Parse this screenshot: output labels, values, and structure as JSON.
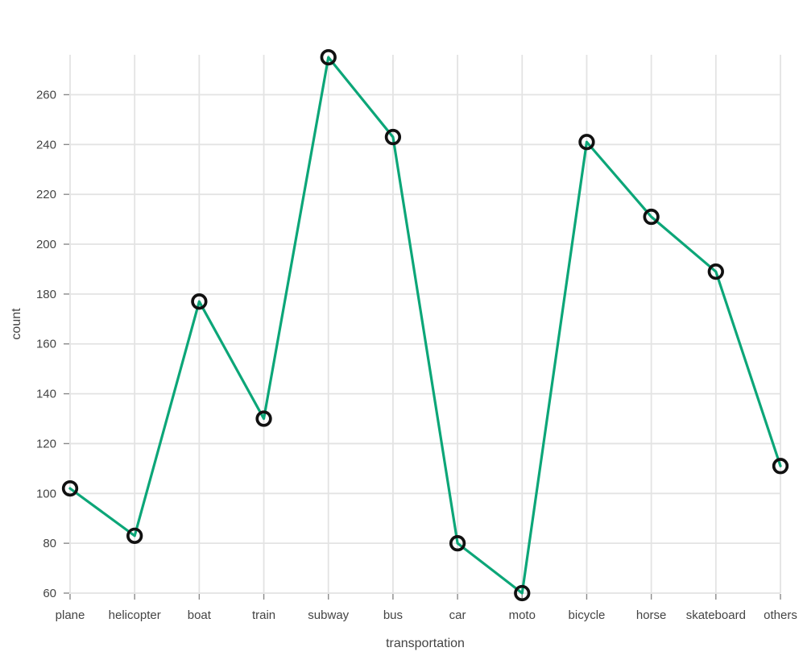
{
  "chart_data": {
    "type": "line",
    "categories": [
      "plane",
      "helicopter",
      "boat",
      "train",
      "subway",
      "bus",
      "car",
      "moto",
      "bicycle",
      "horse",
      "skateboard",
      "others"
    ],
    "values": [
      102,
      83,
      177,
      130,
      275,
      243,
      80,
      60,
      241,
      211,
      189,
      111
    ],
    "series": [
      {
        "name": "count",
        "values": [
          102,
          83,
          177,
          130,
          275,
          243,
          80,
          60,
          241,
          211,
          189,
          111
        ]
      }
    ],
    "title": "",
    "xlabel": "transportation",
    "ylabel": "count",
    "yticks": [
      60,
      80,
      100,
      120,
      140,
      160,
      180,
      200,
      220,
      240,
      260
    ],
    "ylim": [
      60,
      276
    ],
    "grid": true,
    "legend": "none",
    "marker_style": "open-circle",
    "colors": {
      "line": "#0ca678",
      "marker_ring": "#111111",
      "grid": "#e3e3e3",
      "tick_mark": "#8a8a8a",
      "text": "#444444",
      "background": "#ffffff"
    }
  }
}
